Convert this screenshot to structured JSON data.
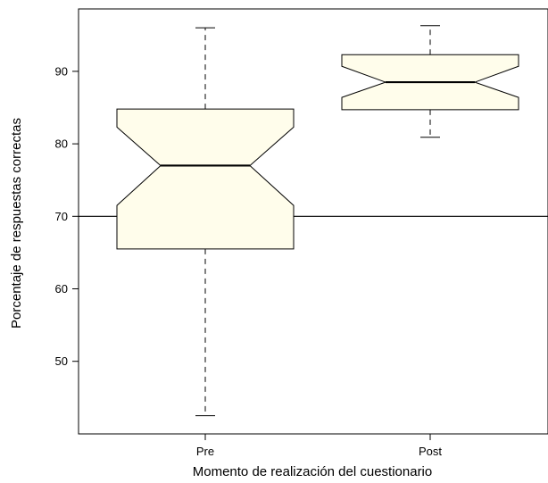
{
  "chart_data": {
    "type": "boxplot",
    "notched": true,
    "title": "",
    "xlabel": "Momento de realización del cuestionario",
    "ylabel": "Porcentaje de respuestas correctas",
    "categories": [
      "Pre",
      "Post"
    ],
    "ylim": [
      40,
      98
    ],
    "yticks": [
      50,
      60,
      70,
      80,
      90
    ],
    "ytick_labels": [
      "50",
      "60",
      "70",
      "80",
      "90"
    ],
    "boxes": [
      {
        "label": "Pre",
        "whisker_low": 42.5,
        "q1": 65.5,
        "notch_low": 71.5,
        "median": 77.0,
        "notch_high": 82.3,
        "q3": 84.8,
        "whisker_high": 96.0
      },
      {
        "label": "Post",
        "whisker_low": 80.9,
        "q1": 84.7,
        "notch_low": 86.4,
        "median": 88.5,
        "notch_high": 90.7,
        "q3": 92.3,
        "whisker_high": 96.3
      }
    ],
    "reference_line": {
      "y": 70
    },
    "box_fill": "#fffdeb",
    "grid": false
  }
}
